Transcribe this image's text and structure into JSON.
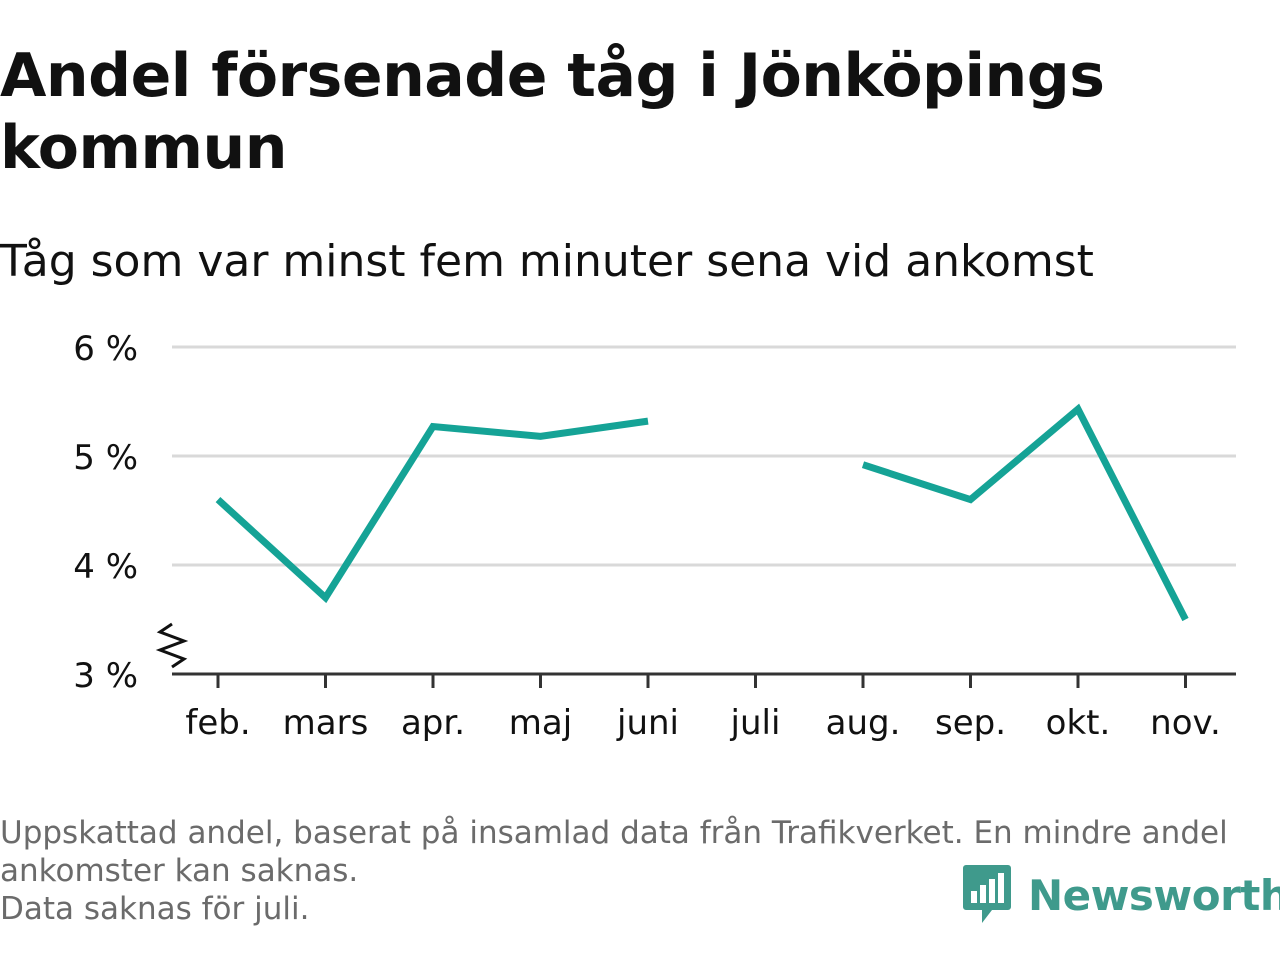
{
  "header": {
    "title": "Andel försenade tåg i Jönköpings kommun",
    "subtitle": "Tåg som var minst fem minuter sena vid ankomst"
  },
  "footer": {
    "notes": [
      "Uppskattad andel, baserat på insamlad data från Trafikverket. En mindre andel",
      "ankomster kan saknas.",
      "Data saknas för juli."
    ],
    "brand": "Newsworthy",
    "brand_icon": "bar-chart-speech-bubble-icon"
  },
  "colors": {
    "line": "#15a396",
    "grid": "#d9d9d9",
    "axis": "#333333",
    "text": "#111111",
    "note": "#6b6b6b",
    "brand": "#3f9a8c"
  },
  "chart_data": {
    "type": "line",
    "categories": [
      "feb.",
      "mars",
      "apr.",
      "maj",
      "juni",
      "juli",
      "aug.",
      "sep.",
      "okt.",
      "nov."
    ],
    "series": [
      {
        "values": [
          4.6,
          3.7,
          5.27,
          5.18,
          5.32,
          null,
          4.92,
          4.6,
          5.43,
          3.5
        ]
      }
    ],
    "y_ticks": [
      "3 %",
      "4 %",
      "5 %",
      "6 %"
    ],
    "ylim": [
      3,
      6
    ],
    "y_axis_break": true,
    "grid": true,
    "xlabel": "",
    "ylabel": ""
  }
}
